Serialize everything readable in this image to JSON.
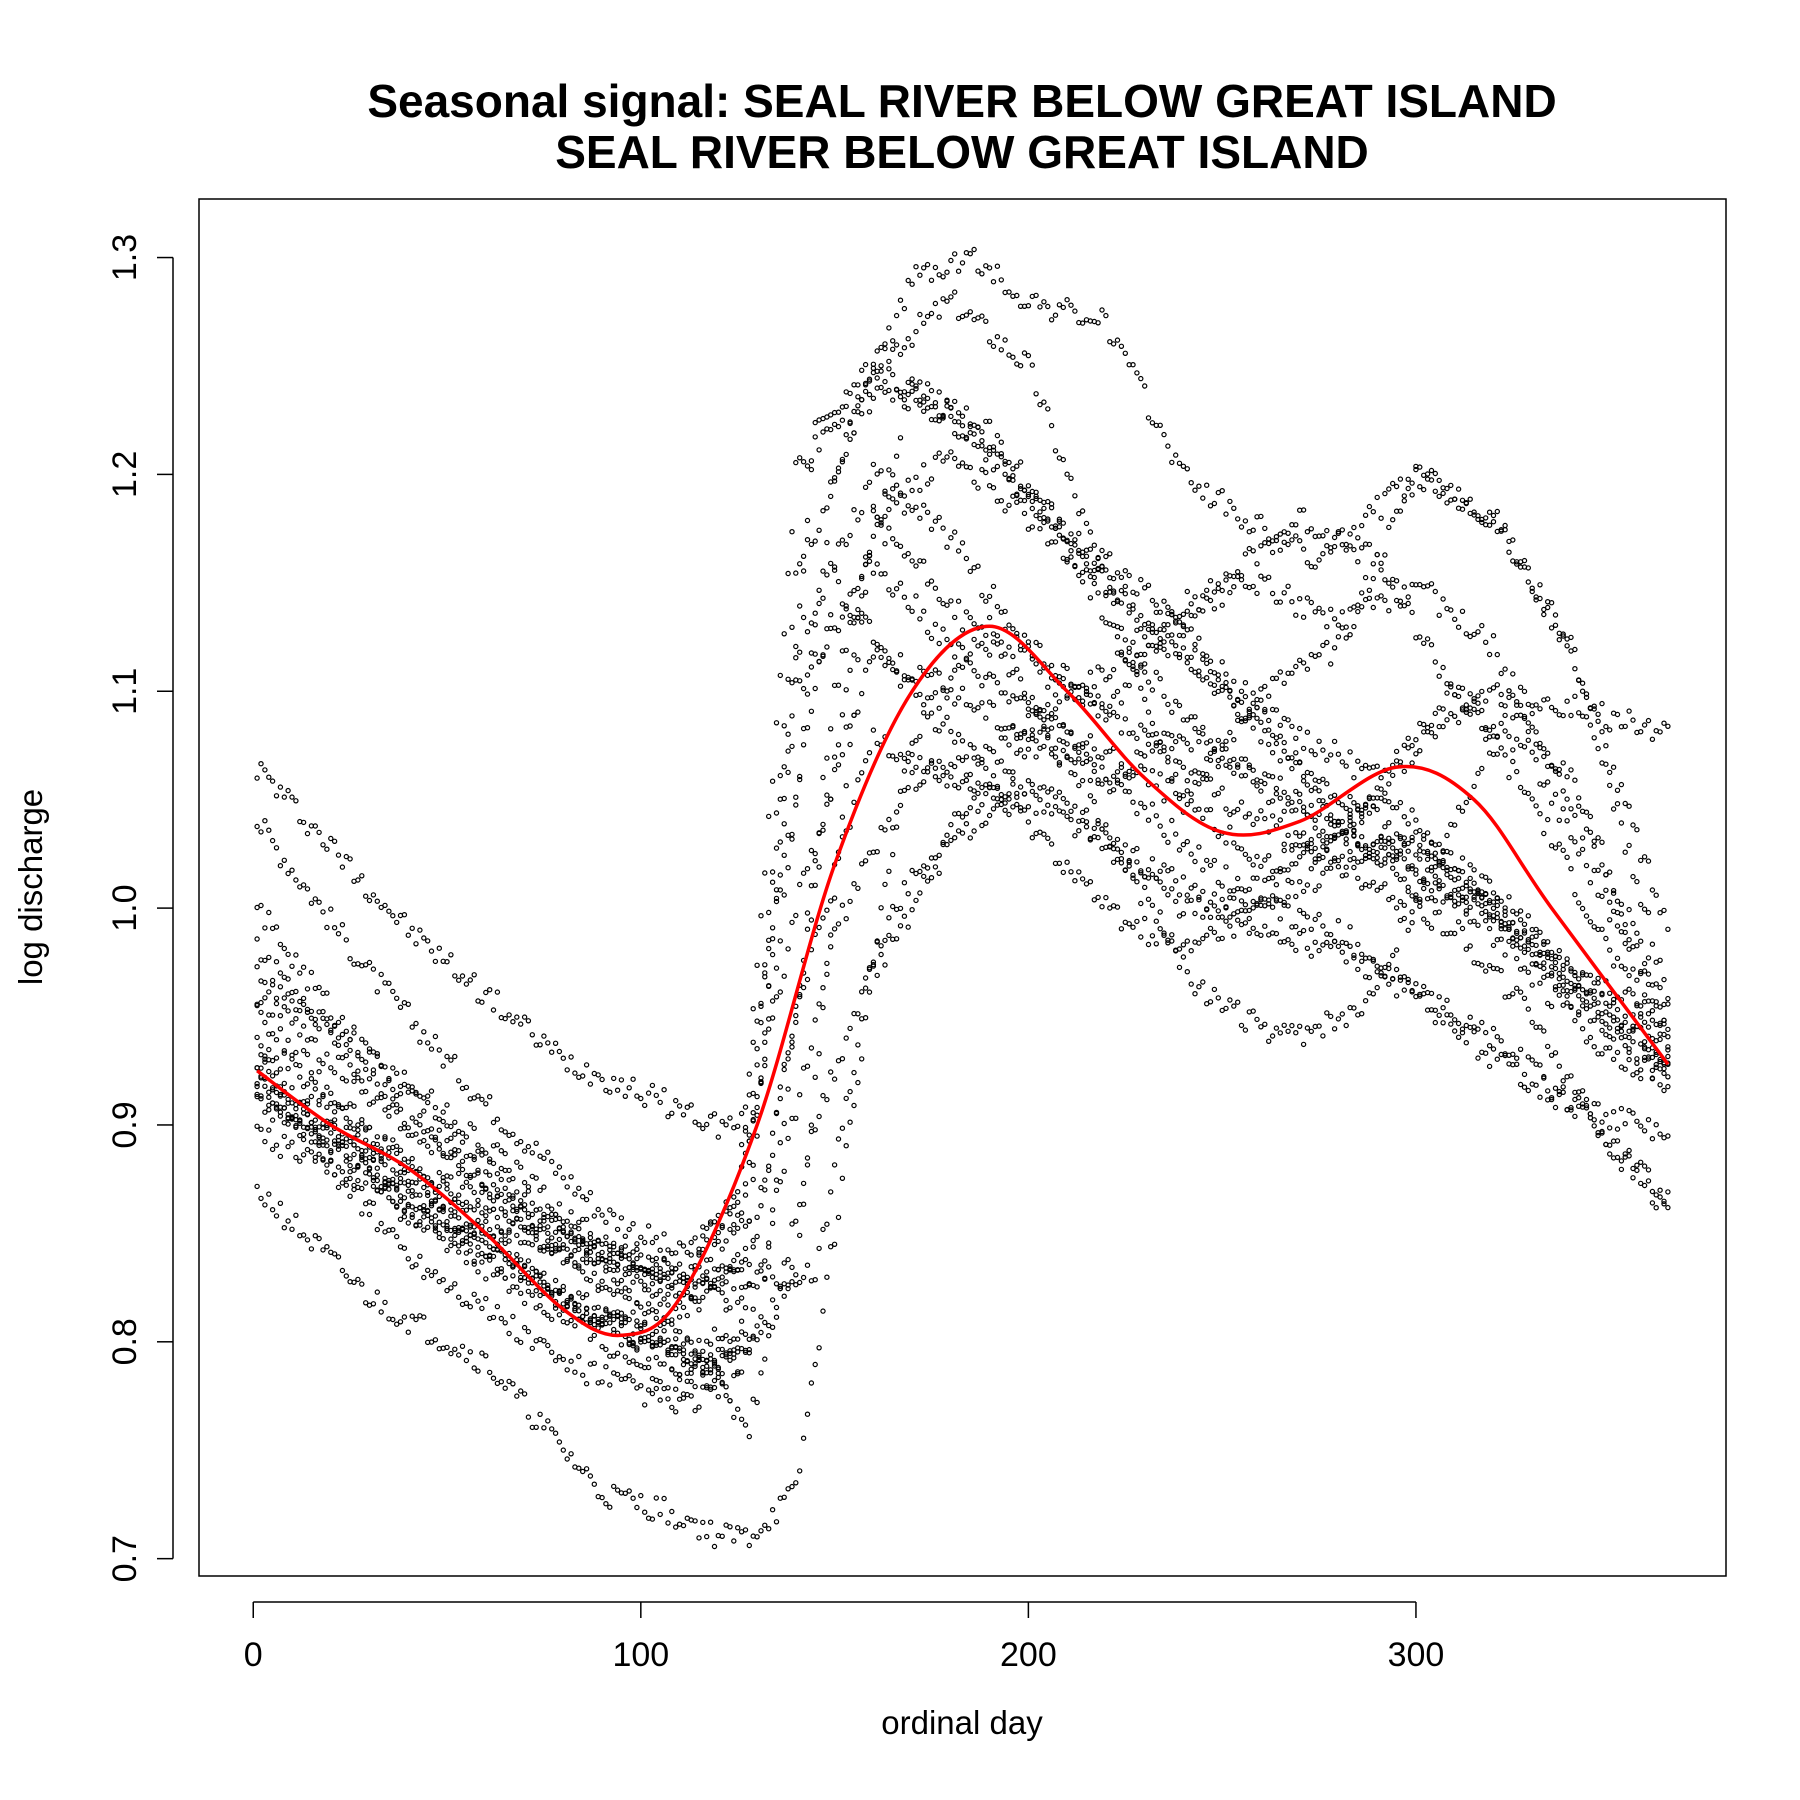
{
  "chart_data": {
    "type": "scatter",
    "title": "Seasonal signal: SEAL RIVER BELOW GREAT ISLAND",
    "subtitle": "SEAL RIVER BELOW GREAT ISLAND",
    "xlabel": "ordinal day",
    "ylabel": "log discharge",
    "xlim": [
      -14,
      380
    ],
    "ylim": [
      0.692,
      1.327
    ],
    "xticks": [
      0,
      100,
      200,
      300
    ],
    "yticks": [
      0.7,
      0.8,
      0.9,
      1.0,
      1.1,
      1.2,
      1.3
    ],
    "xtick_labels": [
      "0",
      "100",
      "200",
      "300"
    ],
    "ytick_labels": [
      "0.7",
      "0.8",
      "0.9",
      "1.0",
      "1.1",
      "1.2",
      "1.3"
    ],
    "grid": false,
    "colors": {
      "points": "#000000",
      "fit": "#ff0000"
    },
    "yearly_series": [
      {
        "x": [
          1,
          40,
          80,
          120,
          130,
          150,
          170,
          185,
          200,
          220,
          240,
          255,
          275,
          300,
          320,
          340,
          365
        ],
        "y": [
          1.065,
          0.99,
          0.93,
          0.9,
          0.9,
          1.2,
          1.29,
          1.3,
          1.28,
          1.27,
          1.2,
          1.18,
          1.16,
          1.2,
          1.18,
          1.12,
          0.96
        ]
      },
      {
        "x": [
          1,
          30,
          60,
          90,
          110,
          125,
          140,
          160,
          180,
          200,
          220,
          240,
          260,
          280,
          300,
          320,
          340,
          365
        ],
        "y": [
          1.04,
          0.97,
          0.91,
          0.86,
          0.84,
          0.86,
          1.2,
          1.25,
          1.28,
          1.25,
          1.15,
          1.05,
          1.1,
          1.12,
          1.2,
          1.18,
          1.12,
          0.99
        ]
      },
      {
        "x": [
          1,
          30,
          60,
          90,
          110,
          128,
          145,
          165,
          185,
          205,
          225,
          245,
          265,
          285,
          305,
          325,
          345,
          365
        ],
        "y": [
          1.0,
          0.93,
          0.88,
          0.84,
          0.83,
          0.86,
          1.22,
          1.24,
          1.22,
          1.18,
          1.12,
          1.08,
          1.05,
          1.03,
          1.01,
          0.98,
          0.94,
          0.92
        ]
      },
      {
        "x": [
          1,
          40,
          80,
          110,
          128,
          140,
          160,
          180,
          200,
          220,
          240,
          260,
          280,
          300,
          320,
          340,
          365
        ],
        "y": [
          0.97,
          0.92,
          0.86,
          0.82,
          0.84,
          0.95,
          1.18,
          1.14,
          1.1,
          1.06,
          1.03,
          1.0,
          0.99,
          0.96,
          0.94,
          0.91,
          0.865
        ]
      },
      {
        "x": [
          1,
          40,
          80,
          110,
          125,
          140,
          160,
          180,
          200,
          220,
          240,
          260,
          280,
          300,
          320,
          340,
          365
        ],
        "y": [
          0.95,
          0.88,
          0.82,
          0.79,
          0.8,
          1.1,
          1.16,
          1.12,
          1.09,
          1.07,
          1.05,
          1.02,
          1.03,
          1.08,
          1.1,
          1.06,
          0.95
        ]
      },
      {
        "x": [
          1,
          40,
          80,
          105,
          120,
          130,
          150,
          170,
          190,
          210,
          230,
          250,
          270,
          290,
          310,
          330,
          350,
          365
        ],
        "y": [
          0.93,
          0.87,
          0.82,
          0.8,
          0.79,
          0.95,
          1.15,
          1.1,
          1.06,
          1.04,
          1.02,
          1.0,
          1.02,
          1.05,
          1.1,
          1.07,
          1.0,
          0.94
        ]
      },
      {
        "x": [
          1,
          40,
          80,
          110,
          125,
          150,
          170,
          190,
          210,
          230,
          250,
          270,
          290,
          310,
          330,
          350,
          365
        ],
        "y": [
          0.92,
          0.84,
          0.79,
          0.77,
          0.78,
          0.99,
          1.06,
          1.07,
          1.1,
          1.12,
          1.15,
          1.18,
          1.16,
          1.1,
          1.05,
          0.98,
          0.93
        ]
      },
      {
        "x": [
          1,
          30,
          60,
          90,
          110,
          120,
          128,
          140,
          160,
          180,
          200,
          220,
          240,
          260,
          280,
          300,
          320,
          340,
          365
        ],
        "y": [
          0.87,
          0.82,
          0.79,
          0.73,
          0.72,
          0.71,
          0.71,
          0.73,
          0.97,
          1.03,
          1.06,
          1.03,
          1.0,
          0.99,
          0.98,
          0.96,
          0.93,
          0.91,
          0.895
        ]
      },
      {
        "x": [
          1,
          40,
          70,
          90,
          110,
          130,
          145,
          170,
          190,
          210,
          230,
          250,
          270,
          290,
          310,
          330,
          350,
          365
        ],
        "y": [
          0.895,
          0.86,
          0.85,
          0.84,
          0.83,
          0.83,
          0.83,
          1.08,
          1.13,
          1.1,
          1.08,
          1.05,
          1.03,
          1.01,
          0.99,
          0.95,
          0.89,
          0.86
        ]
      },
      {
        "x": [
          1,
          40,
          80,
          110,
          128,
          145,
          165,
          185,
          205,
          225,
          245,
          265,
          285,
          305,
          325,
          345,
          365
        ],
        "y": [
          0.96,
          0.9,
          0.84,
          0.8,
          0.76,
          0.9,
          1.0,
          1.05,
          1.08,
          1.02,
          0.96,
          0.94,
          0.95,
          1.02,
          1.1,
          1.09,
          1.08
        ]
      },
      {
        "x": [
          1,
          40,
          80,
          110,
          130,
          150,
          170,
          190,
          210,
          230,
          250,
          270,
          290,
          310,
          330,
          350,
          365
        ],
        "y": [
          0.92,
          0.86,
          0.82,
          0.8,
          0.8,
          1.1,
          1.24,
          1.22,
          1.17,
          1.13,
          1.1,
          1.08,
          1.06,
          1.02,
          0.98,
          0.96,
          0.95
        ]
      },
      {
        "x": [
          1,
          40,
          80,
          110,
          125,
          140,
          160,
          180,
          200,
          220,
          240,
          260,
          280,
          300,
          320,
          340,
          365
        ],
        "y": [
          0.94,
          0.88,
          0.84,
          0.81,
          0.84,
          1.12,
          1.2,
          1.17,
          1.12,
          1.09,
          1.14,
          1.15,
          1.13,
          1.15,
          1.12,
          1.05,
          0.945
        ]
      },
      {
        "x": [
          1,
          40,
          80,
          110,
          125,
          140,
          160,
          180,
          200,
          220,
          240,
          260,
          280,
          300,
          320,
          340,
          365
        ],
        "y": [
          0.91,
          0.88,
          0.85,
          0.83,
          0.87,
          1.0,
          1.12,
          1.1,
          1.08,
          1.06,
          1.08,
          1.06,
          1.04,
          1.02,
          1.0,
          0.96,
          0.92
        ]
      },
      {
        "x": [
          1,
          40,
          80,
          110,
          125,
          140,
          160,
          180,
          200,
          220,
          240,
          260,
          280,
          300,
          320,
          340,
          365
        ],
        "y": [
          0.98,
          0.9,
          0.85,
          0.82,
          0.82,
          1.15,
          1.25,
          1.23,
          1.19,
          1.16,
          1.13,
          1.09,
          1.04,
          1.01,
          1.0,
          0.97,
          0.935
        ]
      },
      {
        "x": [
          1,
          40,
          80,
          110,
          125,
          140,
          160,
          180,
          200,
          220,
          240,
          260,
          280,
          300,
          320,
          340,
          365
        ],
        "y": [
          0.93,
          0.86,
          0.81,
          0.78,
          0.8,
          0.95,
          1.08,
          1.06,
          1.04,
          1.0,
          0.98,
          1.0,
          1.02,
          1.03,
          1.01,
          0.97,
          0.93
        ]
      },
      {
        "x": [
          1,
          40,
          80,
          110,
          125,
          140,
          160,
          180,
          200,
          220,
          240,
          260,
          280,
          300,
          320,
          340,
          365
        ],
        "y": [
          0.915,
          0.87,
          0.82,
          0.79,
          0.79,
          0.83,
          1.18,
          1.21,
          1.18,
          1.15,
          1.12,
          1.08,
          1.05,
          1.03,
          1.0,
          0.96,
          0.925
        ]
      }
    ],
    "fit_series": {
      "x": [
        1,
        20,
        40,
        60,
        80,
        95,
        110,
        130,
        150,
        170,
        190,
        210,
        230,
        250,
        270,
        295,
        315,
        335,
        365
      ],
      "y": [
        0.925,
        0.9,
        0.88,
        0.85,
        0.815,
        0.803,
        0.82,
        0.9,
        1.02,
        1.1,
        1.13,
        1.1,
        1.06,
        1.035,
        1.04,
        1.065,
        1.05,
        1.0,
        0.928
      ]
    }
  }
}
